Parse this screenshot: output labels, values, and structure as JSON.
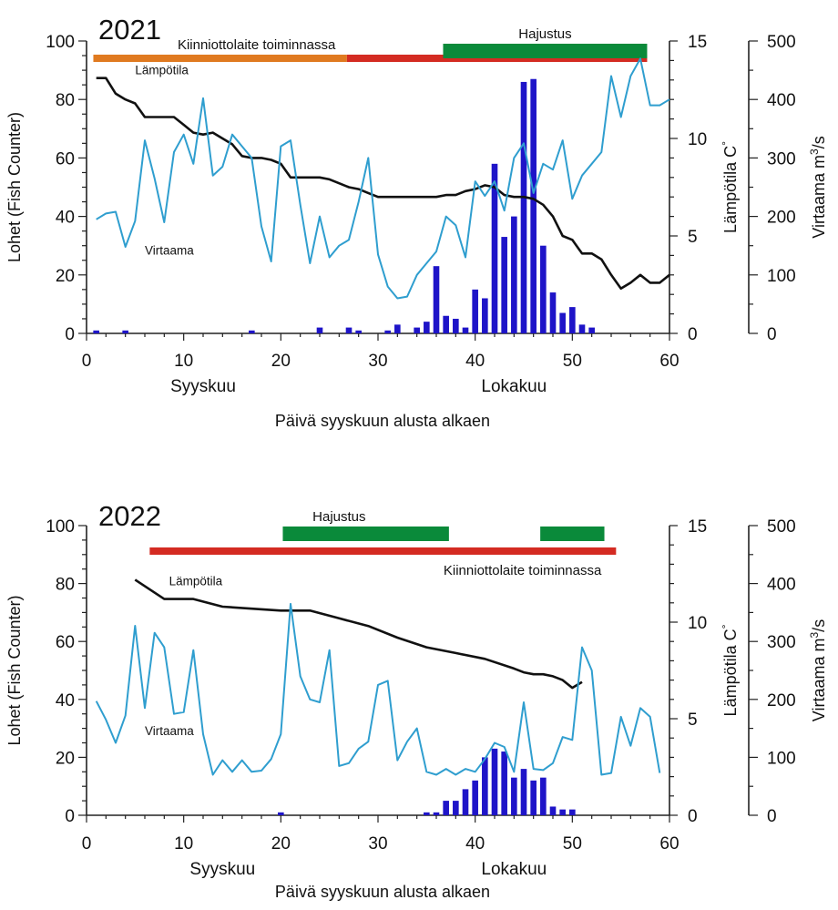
{
  "chart_data": [
    {
      "type": "bar+line",
      "title": "2021",
      "xlabel": "Päivä syyskuun alusta alkaen",
      "xlim": [
        0,
        60
      ],
      "x_ticks": [
        0,
        10,
        20,
        30,
        40,
        50,
        60
      ],
      "month_labels": [
        {
          "text": "Syyskuu",
          "x": 12
        },
        {
          "text": "Lokakuu",
          "x": 44
        }
      ],
      "ylabel_left": "Lohet (Fish Counter)",
      "ylim_left": [
        0,
        100
      ],
      "y_ticks_left": [
        0,
        20,
        40,
        60,
        80,
        100
      ],
      "ylabel_temp": "Lämpötila C°",
      "ylim_temp": [
        0,
        15
      ],
      "y_ticks_temp": [
        0,
        5,
        10,
        15
      ],
      "ylabel_flow": "Virtaama m³/s",
      "ylim_flow": [
        0,
        500
      ],
      "y_ticks_flow": [
        0,
        100,
        200,
        300,
        400,
        500
      ],
      "period_bars": [
        {
          "label": "Kiinniottolaite toiminnassa",
          "color": "#E07A20",
          "start": 0.7,
          "end": 26.8,
          "row": "lower",
          "show_label": false
        },
        {
          "label": "Kiinniottolaite toiminnassa",
          "color": "#D42B22",
          "start": 26.8,
          "end": 57.7,
          "row": "lower",
          "show_label": true,
          "label_x": 17.5,
          "label_anchor": "middle",
          "label_pos": "above"
        },
        {
          "label": "Hajustus",
          "color": "#0A8A3A",
          "start": 36.7,
          "end": 57.7,
          "row": "upper",
          "show_label": true,
          "label_x": 47.2,
          "label_anchor": "middle",
          "label_pos": "above"
        }
      ],
      "series": [
        {
          "name": "Lohet",
          "type": "bar",
          "color": "#1E14C8",
          "x": [
            1,
            4,
            17,
            24,
            27,
            28,
            31,
            32,
            34,
            35,
            36,
            37,
            38,
            39,
            40,
            41,
            42,
            43,
            44,
            45,
            46,
            47,
            48,
            49,
            50,
            51,
            52
          ],
          "values": [
            1,
            1,
            1,
            2,
            2,
            1,
            1,
            3,
            2,
            4,
            23,
            6,
            5,
            2,
            15,
            12,
            58,
            33,
            40,
            86,
            87,
            30,
            14,
            7,
            9,
            3,
            2
          ]
        },
        {
          "name": "Lämpötila",
          "type": "line",
          "axis": "temp",
          "color": "#111111",
          "label_x": 5,
          "label_y": 13.3,
          "x": [
            1,
            2,
            3,
            4,
            5,
            6,
            7,
            8,
            9,
            10,
            11,
            12,
            13,
            14,
            15,
            16,
            17,
            18,
            19,
            20,
            21,
            22,
            23,
            24,
            25,
            26,
            27,
            28,
            29,
            30,
            31,
            32,
            33,
            34,
            35,
            36,
            37,
            38,
            39,
            40,
            41,
            42,
            43,
            44,
            45,
            46,
            47,
            48,
            49,
            50,
            51,
            52,
            53,
            54,
            55,
            56,
            57,
            58,
            59,
            60
          ],
          "values": [
            13.1,
            13.1,
            12.3,
            12.0,
            11.8,
            11.1,
            11.1,
            11.1,
            11.1,
            10.7,
            10.3,
            10.2,
            10.3,
            10.0,
            9.7,
            9.1,
            9.0,
            9.0,
            8.9,
            8.7,
            8.0,
            8.0,
            8.0,
            8.0,
            7.9,
            7.7,
            7.5,
            7.4,
            7.2,
            7.0,
            7.0,
            7.0,
            7.0,
            7.0,
            7.0,
            7.0,
            7.1,
            7.1,
            7.3,
            7.4,
            7.6,
            7.5,
            7.1,
            7.0,
            7.0,
            6.9,
            6.6,
            6.0,
            5.0,
            4.8,
            4.1,
            4.1,
            3.8,
            3.0,
            2.3,
            2.6,
            3.0,
            2.6,
            2.6,
            3.0
          ]
        },
        {
          "name": "Virtaama",
          "type": "line",
          "axis": "flow",
          "color": "#2F9ECF",
          "label_x": 6,
          "label_y": 135,
          "x": [
            1,
            2,
            3,
            4,
            5,
            6,
            7,
            8,
            9,
            10,
            11,
            12,
            13,
            14,
            15,
            16,
            17,
            18,
            19,
            20,
            21,
            22,
            23,
            24,
            25,
            26,
            27,
            28,
            29,
            30,
            31,
            32,
            33,
            34,
            35,
            36,
            37,
            38,
            39,
            40,
            41,
            42,
            43,
            44,
            45,
            46,
            47,
            48,
            49,
            50,
            51,
            52,
            53,
            54,
            55,
            56,
            57,
            58,
            59,
            60
          ],
          "values": [
            195,
            205,
            208,
            148,
            192,
            330,
            265,
            190,
            310,
            340,
            290,
            402,
            270,
            285,
            340,
            320,
            300,
            183,
            123,
            320,
            330,
            220,
            120,
            200,
            130,
            150,
            160,
            225,
            300,
            135,
            80,
            60,
            63,
            100,
            120,
            140,
            200,
            185,
            130,
            260,
            235,
            260,
            210,
            300,
            325,
            240,
            290,
            280,
            330,
            230,
            270,
            290,
            310,
            440,
            370,
            440,
            470,
            390,
            390,
            400
          ]
        }
      ]
    },
    {
      "type": "bar+line",
      "title": "2022",
      "xlabel": "Päivä syyskuun alusta alkaen",
      "xlim": [
        0,
        60
      ],
      "x_ticks": [
        0,
        10,
        20,
        30,
        40,
        50,
        60
      ],
      "month_labels": [
        {
          "text": "Syyskuu",
          "x": 14
        },
        {
          "text": "Lokakuu",
          "x": 44
        }
      ],
      "ylabel_left": "Lohet (Fish Counter)",
      "ylim_left": [
        0,
        100
      ],
      "y_ticks_left": [
        0,
        20,
        40,
        60,
        80,
        100
      ],
      "ylabel_temp": "Lämpötila C°",
      "ylim_temp": [
        0,
        15
      ],
      "y_ticks_temp": [
        0,
        5,
        10,
        15
      ],
      "ylabel_flow": "Virtaama m³/s",
      "ylim_flow": [
        0,
        500
      ],
      "y_ticks_flow": [
        0,
        100,
        200,
        300,
        400,
        500
      ],
      "period_bars": [
        {
          "label": "Hajustus",
          "color": "#0A8A3A",
          "start": 20.2,
          "end": 37.3,
          "row": "upper",
          "show_label": true,
          "label_x": 26,
          "label_anchor": "middle",
          "label_pos": "above"
        },
        {
          "label": "Hajustus",
          "color": "#0A8A3A",
          "start": 46.7,
          "end": 53.3,
          "row": "upper",
          "show_label": false
        },
        {
          "label": "Kiinniottolaite toiminnassa",
          "color": "#D42B22",
          "start": 6.5,
          "end": 54.5,
          "row": "lower",
          "show_label": true,
          "label_x": 53,
          "label_anchor": "end",
          "label_pos": "below"
        }
      ],
      "series": [
        {
          "name": "Lohet",
          "type": "bar",
          "color": "#1E14C8",
          "x": [
            20,
            35,
            36,
            37,
            38,
            39,
            40,
            41,
            42,
            43,
            44,
            45,
            46,
            47,
            48,
            49,
            50
          ],
          "values": [
            1,
            1,
            1,
            5,
            5,
            9,
            12,
            20,
            23,
            22,
            13,
            16,
            12,
            13,
            3,
            2,
            2
          ]
        },
        {
          "name": "Lämpötila",
          "type": "line",
          "axis": "temp",
          "color": "#111111",
          "label_x": 8.5,
          "label_y": 11.9,
          "x": [
            5,
            8,
            11,
            14,
            17,
            20,
            23,
            26,
            29,
            32,
            35,
            38,
            41,
            44,
            45,
            46,
            47,
            48,
            49,
            50,
            51
          ],
          "values": [
            12.2,
            11.2,
            11.2,
            10.8,
            10.7,
            10.6,
            10.6,
            10.2,
            9.8,
            9.2,
            8.7,
            8.4,
            8.1,
            7.6,
            7.4,
            7.3,
            7.3,
            7.2,
            7.0,
            6.6,
            6.9
          ]
        },
        {
          "name": "Virtaama",
          "type": "line",
          "axis": "flow",
          "color": "#2F9ECF",
          "label_x": 6,
          "label_y": 138,
          "x": [
            1,
            2,
            3,
            4,
            5,
            6,
            7,
            8,
            9,
            10,
            11,
            12,
            13,
            14,
            15,
            16,
            17,
            18,
            19,
            20,
            21,
            22,
            23,
            24,
            25,
            26,
            27,
            28,
            29,
            30,
            31,
            32,
            33,
            34,
            35,
            36,
            37,
            38,
            39,
            40,
            41,
            42,
            43,
            44,
            45,
            46,
            47,
            48,
            49,
            50,
            51,
            52,
            53,
            54,
            55,
            56,
            57,
            58,
            59
          ],
          "values": [
            197,
            165,
            125,
            172,
            327,
            185,
            315,
            290,
            175,
            178,
            285,
            140,
            70,
            95,
            75,
            95,
            75,
            77,
            97,
            140,
            365,
            240,
            200,
            195,
            285,
            85,
            90,
            115,
            127,
            225,
            232,
            95,
            127,
            150,
            75,
            70,
            80,
            70,
            80,
            75,
            97,
            125,
            118,
            75,
            195,
            80,
            78,
            90,
            135,
            130,
            290,
            250,
            70,
            73,
            170,
            120,
            185,
            170,
            73
          ]
        }
      ]
    }
  ]
}
